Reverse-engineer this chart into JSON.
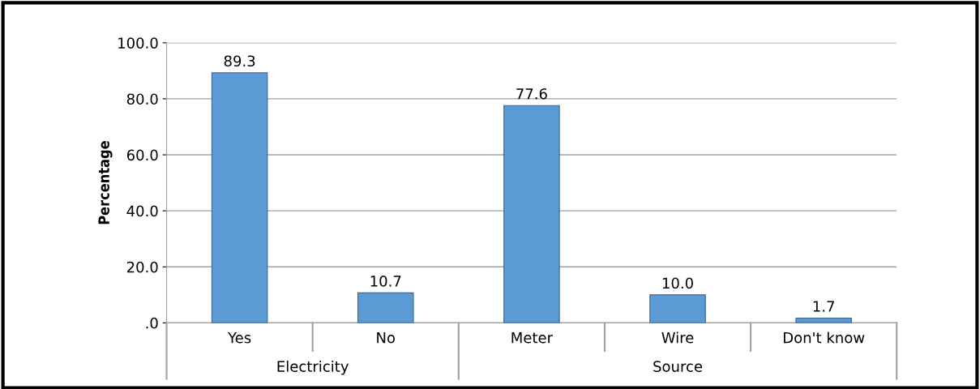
{
  "chart_data": {
    "type": "bar",
    "ylabel": "Percentage",
    "categories": [
      "Yes",
      "No",
      "Meter",
      "Wire",
      "Don't know"
    ],
    "values": [
      89.3,
      10.7,
      77.6,
      10.0,
      1.7
    ],
    "color": "#5b9bd5",
    "ylim": [
      0,
      100
    ],
    "yticks": [
      {
        "value": 0,
        "label": ".0"
      },
      {
        "value": 20,
        "label": "20.0"
      },
      {
        "value": 40,
        "label": "40.0"
      },
      {
        "value": 60,
        "label": "60.0"
      },
      {
        "value": 80,
        "label": "80.0"
      },
      {
        "value": 100,
        "label": "100.0"
      }
    ],
    "grid": "y",
    "value_labels": [
      "89.3",
      "10.7",
      "77.6",
      "10.0",
      "1.7"
    ],
    "annotations": [
      "Electricity",
      "Source"
    ]
  }
}
